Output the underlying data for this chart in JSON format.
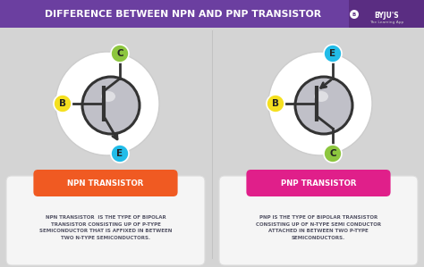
{
  "title": "DIFFERENCE BETWEEN NPN AND PNP TRANSISTOR",
  "title_bg": "#6b3fa0",
  "title_color": "#ffffff",
  "bg_color": "#d4d4d4",
  "npn_label": "NPN TRANSISTOR",
  "pnp_label": "PNP TRANSISTOR",
  "npn_label_bg": "#f05a22",
  "pnp_label_bg": "#e01f8a",
  "npn_text": "NPN TRANSISTOR  IS THE TYPE OF BIPOLAR\nTRANSISTOR CONSISTING UP OF P-TYPE\nSEMICONDUCTOR THAT IS AFFIXED IN BETWEEN\nTWO N-TYPE SEMICONDUCTORS.",
  "pnp_text": "PNP IS THE TYPE OF BIPOLAR TRANSISTOR\nCONSISTING UP OF N-TYPE SEMI CONDUCTOR\nATTACHED IN BETWEEN TWO P-TYPE\nSEMICONDUCTORS.",
  "card_bg": "#f5f5f5",
  "text_color": "#555566",
  "C_color": "#8dc63f",
  "E_color": "#22bce8",
  "B_color": "#f5e020",
  "transistor_border": "#333333",
  "transistor_body": "#b0b0b8",
  "outer_circle_bg": "#e8e8ec",
  "outer_circle_edge": "#cccccc",
  "inner_circle_bg": "#c0c0c8",
  "byju_bg": "#5a2d82"
}
